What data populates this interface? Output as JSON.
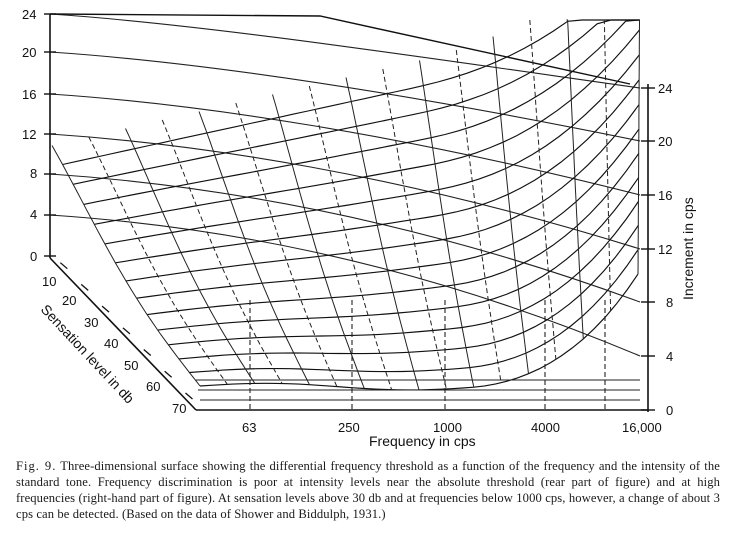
{
  "figure": {
    "left_axis": {
      "ticks": [
        "24",
        "20",
        "16",
        "12",
        "8",
        "4",
        "0"
      ]
    },
    "right_axis": {
      "title": "Increment in cps",
      "ticks": [
        "24",
        "20",
        "16",
        "12",
        "8",
        "4",
        "0"
      ]
    },
    "depth_axis": {
      "title": "Sensation level in db",
      "ticks": [
        "10",
        "20",
        "30",
        "40",
        "50",
        "60",
        "70"
      ]
    },
    "bottom_axis": {
      "title": "Frequency in cps",
      "ticks": [
        "63",
        "250",
        "1000",
        "4000",
        "16,000"
      ]
    }
  },
  "caption": {
    "label": "Fig. 9.",
    "text": "Three-dimensional surface showing the differential frequency threshold as a function of the frequency and the intensity of the standard tone. Frequency discrimination is poor at intensity levels near the absolute threshold (rear part of figure) and at high frequencies (right-hand part of figure). At sensation levels above 30 db and at frequencies below 1000 cps, however, a change of about 3 cps can be detected. (Based on the data of Shower and Biddulph, 1931.)"
  }
}
